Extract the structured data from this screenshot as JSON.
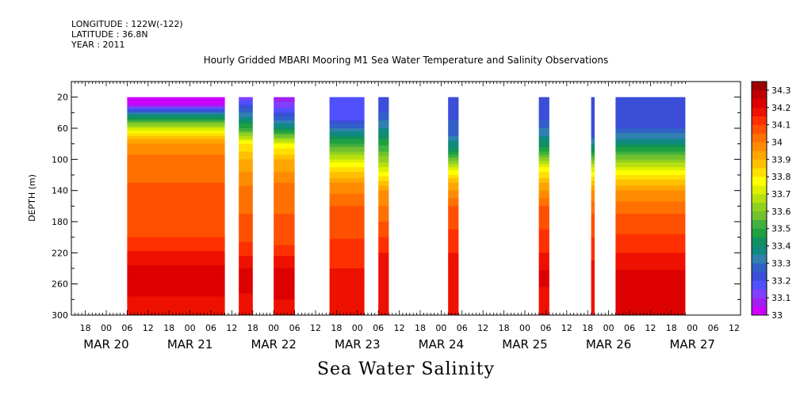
{
  "meta": {
    "longitude": "LONGITUDE : 122W(-122)",
    "latitude": "LATITUDE : 36.8N",
    "year": "YEAR : 2011"
  },
  "chart_data": {
    "type": "heatmap",
    "title": "Hourly Gridded MBARI Mooring M1 Sea Water Temperature and Salinity Observations",
    "xlabel": "Sea Water Salinity",
    "ylabel": "DEPTH (m)",
    "x_axis": {
      "unit": "hours",
      "range_start": "MAR 20 14:00",
      "range_end": "MAR 27 22:00",
      "hour_tick_labels": [
        "18",
        "00",
        "06",
        "12",
        "18",
        "00",
        "06",
        "12",
        "18",
        "00",
        "06",
        "12",
        "18",
        "00",
        "06",
        "12",
        "18",
        "00",
        "06",
        "12",
        "18",
        "00",
        "06",
        "12",
        "18",
        "00",
        "06",
        "12",
        "18",
        "00",
        "06",
        "12"
      ],
      "date_labels": [
        "MAR 20",
        "MAR 21",
        "MAR 22",
        "MAR 23",
        "MAR 24",
        "MAR 25",
        "MAR 26",
        "MAR 27"
      ]
    },
    "y_axis": {
      "range": [
        0,
        300
      ],
      "inverted": true,
      "tick_values": [
        20,
        60,
        100,
        140,
        180,
        220,
        260,
        300
      ]
    },
    "colorbar": {
      "labels": [
        "34.3",
        "34.2",
        "34.1",
        "34",
        "33.9",
        "33.8",
        "33.7",
        "33.6",
        "33.5",
        "33.4",
        "33.3",
        "33.2",
        "33.1",
        "33"
      ],
      "levels": [
        33.0,
        33.05,
        33.1,
        33.15,
        33.2,
        33.25,
        33.3,
        33.35,
        33.4,
        33.45,
        33.5,
        33.55,
        33.6,
        33.65,
        33.7,
        33.75,
        33.8,
        33.85,
        33.9,
        33.95,
        34.0,
        34.05,
        34.1,
        34.15,
        34.2,
        34.25,
        34.3,
        34.35
      ],
      "colors": [
        "#cc00ff",
        "#a020f0",
        "#8040ff",
        "#5050ff",
        "#3a4ed8",
        "#3060c8",
        "#3080b0",
        "#108a80",
        "#109060",
        "#20a040",
        "#40b040",
        "#70c030",
        "#90d020",
        "#b8e010",
        "#ddf000",
        "#ffff00",
        "#ffe000",
        "#ffc000",
        "#ffa500",
        "#ff8c00",
        "#ff7000",
        "#ff5000",
        "#ff3000",
        "#ee1000",
        "#dd0000",
        "#c00000",
        "#a00000"
      ]
    },
    "segments": [
      {
        "start": "MAR 21 06:00",
        "end": "MAR 22 10:00",
        "profile": [
          [
            20,
            33.0
          ],
          [
            30,
            33.05
          ],
          [
            40,
            33.3
          ],
          [
            50,
            33.5
          ],
          [
            60,
            33.7
          ],
          [
            70,
            33.85
          ],
          [
            80,
            33.95
          ],
          [
            100,
            34.02
          ],
          [
            130,
            34.05
          ],
          [
            150,
            34.05
          ],
          [
            200,
            34.1
          ],
          [
            230,
            34.18
          ],
          [
            250,
            34.25
          ],
          [
            275,
            34.2
          ],
          [
            300,
            34.15
          ]
        ]
      },
      {
        "start": "MAR 22 14:00",
        "end": "MAR 22 18:00",
        "profile": [
          [
            20,
            33.1
          ],
          [
            40,
            33.3
          ],
          [
            60,
            33.5
          ],
          [
            80,
            33.8
          ],
          [
            100,
            33.9
          ],
          [
            140,
            34.02
          ],
          [
            200,
            34.08
          ],
          [
            240,
            34.2
          ],
          [
            260,
            34.22
          ],
          [
            300,
            34.15
          ]
        ]
      },
      {
        "start": "MAR 23 00:00",
        "end": "MAR 23 06:00",
        "profile": [
          [
            20,
            33.05
          ],
          [
            40,
            33.2
          ],
          [
            60,
            33.4
          ],
          [
            80,
            33.75
          ],
          [
            100,
            33.9
          ],
          [
            140,
            34.03
          ],
          [
            200,
            34.07
          ],
          [
            240,
            34.2
          ],
          [
            260,
            34.25
          ],
          [
            300,
            34.15
          ]
        ]
      },
      {
        "start": "MAR 23 16:00",
        "end": "MAR 24 02:00",
        "profile": [
          [
            20,
            33.15
          ],
          [
            50,
            33.2
          ],
          [
            70,
            33.4
          ],
          [
            90,
            33.6
          ],
          [
            110,
            33.8
          ],
          [
            130,
            33.95
          ],
          [
            160,
            34.05
          ],
          [
            220,
            34.12
          ],
          [
            260,
            34.18
          ],
          [
            300,
            34.15
          ]
        ]
      },
      {
        "start": "MAR 24 06:00",
        "end": "MAR 24 09:00",
        "profile": [
          [
            20,
            33.2
          ],
          [
            40,
            33.25
          ],
          [
            60,
            33.35
          ],
          [
            90,
            33.55
          ],
          [
            110,
            33.7
          ],
          [
            140,
            33.95
          ],
          [
            180,
            34.05
          ],
          [
            220,
            34.15
          ],
          [
            260,
            34.2
          ],
          [
            300,
            34.15
          ]
        ]
      },
      {
        "start": "MAR 25 02:00",
        "end": "MAR 25 05:00",
        "profile": [
          [
            20,
            33.2
          ],
          [
            50,
            33.25
          ],
          [
            70,
            33.3
          ],
          [
            90,
            33.45
          ],
          [
            110,
            33.7
          ],
          [
            130,
            33.9
          ],
          [
            160,
            34.05
          ],
          [
            220,
            34.15
          ],
          [
            260,
            34.2
          ],
          [
            300,
            34.15
          ]
        ]
      },
      {
        "start": "MAR 26 04:00",
        "end": "MAR 26 07:00",
        "profile": [
          [
            20,
            33.2
          ],
          [
            50,
            33.25
          ],
          [
            70,
            33.35
          ],
          [
            90,
            33.5
          ],
          [
            110,
            33.75
          ],
          [
            130,
            33.9
          ],
          [
            160,
            34.05
          ],
          [
            220,
            34.15
          ],
          [
            250,
            34.22
          ],
          [
            300,
            34.15
          ]
        ]
      },
      {
        "start": "MAR 26 19:00",
        "end": "MAR 26 20:00",
        "profile": [
          [
            20,
            33.2
          ],
          [
            70,
            33.25
          ],
          [
            90,
            33.45
          ],
          [
            110,
            33.7
          ],
          [
            140,
            33.95
          ],
          [
            170,
            34.05
          ],
          [
            230,
            34.15
          ],
          [
            260,
            34.2
          ],
          [
            300,
            34.15
          ]
        ]
      },
      {
        "start": "MAR 27 02:00",
        "end": "MAR 27 22:00",
        "profile": [
          [
            20,
            33.2
          ],
          [
            60,
            33.25
          ],
          [
            80,
            33.4
          ],
          [
            100,
            33.6
          ],
          [
            120,
            33.8
          ],
          [
            140,
            33.95
          ],
          [
            170,
            34.05
          ],
          [
            220,
            34.15
          ],
          [
            250,
            34.22
          ],
          [
            300,
            34.2
          ]
        ]
      }
    ]
  }
}
